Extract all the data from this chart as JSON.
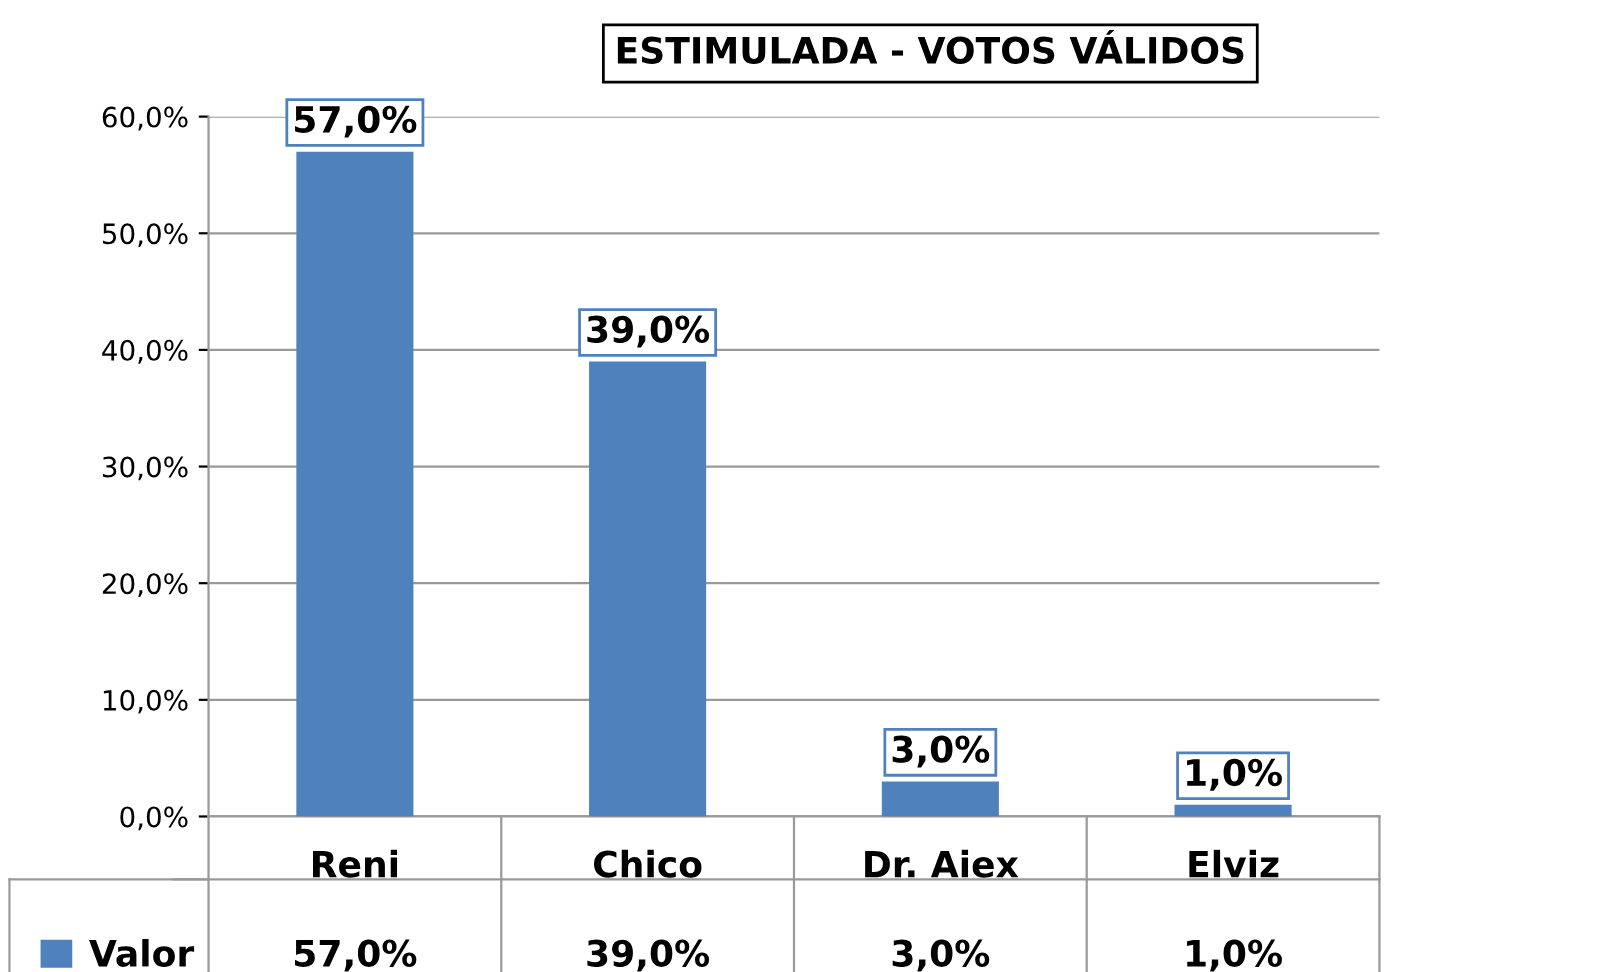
{
  "chart_data": {
    "type": "bar",
    "title": "ESTIMULADA - VOTOS VÁLIDOS",
    "categories": [
      "Reni",
      "Chico",
      "Dr. Aiex",
      "Elviz"
    ],
    "series": [
      {
        "name": "Valor",
        "color": "#4f81bd",
        "values": [
          57,
          39,
          3,
          1
        ],
        "value_labels": [
          "57,0%",
          "39,0%",
          "3,0%",
          "1,0%"
        ]
      }
    ],
    "ylim": [
      0,
      60
    ],
    "yticks": [
      {
        "value": 0,
        "label": "0,0%"
      },
      {
        "value": 10,
        "label": "10,0%"
      },
      {
        "value": 20,
        "label": "20,0%"
      },
      {
        "value": 30,
        "label": "30,0%"
      },
      {
        "value": 40,
        "label": "40,0%"
      },
      {
        "value": 50,
        "label": "50,0%"
      },
      {
        "value": 60,
        "label": "60,0%"
      }
    ],
    "grid": "y",
    "legend": "bottom"
  }
}
